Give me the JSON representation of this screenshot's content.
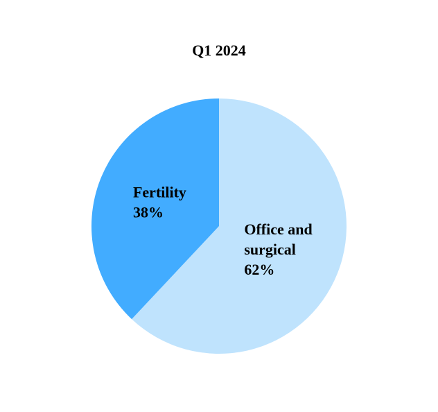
{
  "chart_data": {
    "type": "pie",
    "title": "Q1 2024",
    "categories": [
      "Office and surgical",
      "Fertility"
    ],
    "values": [
      62,
      38
    ],
    "value_labels": [
      "62%",
      "38%"
    ],
    "colors": [
      "#bfe3fd",
      "#42acff"
    ]
  }
}
